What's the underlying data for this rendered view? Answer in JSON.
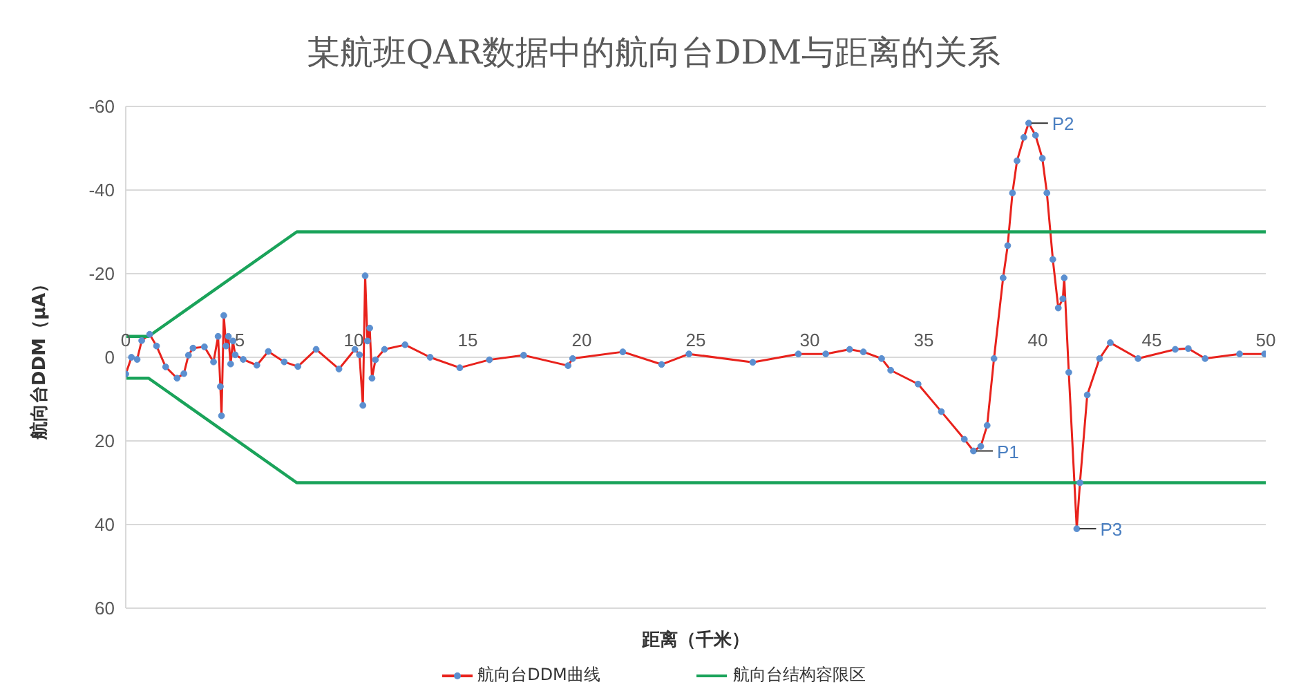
{
  "chart_data": {
    "type": "line",
    "title": "某航班QAR数据中的航向台DDM与距离的关系",
    "xlabel": "距离（千米）",
    "ylabel": "航向台DDM（μA）",
    "xlim": [
      0,
      50
    ],
    "xticks": [
      0,
      5,
      10,
      15,
      20,
      25,
      30,
      35,
      40,
      45,
      50
    ],
    "ylim": [
      60,
      -60
    ],
    "yticks": [
      -60,
      -40,
      -20,
      0,
      20,
      40,
      60
    ],
    "grid": "y",
    "legend": "bottom",
    "series": [
      {
        "name": "航向台DDM曲线",
        "color": "#e8221c",
        "marker": "circle",
        "x": [
          0,
          0.25,
          0.5,
          0.7,
          1.05,
          1.35,
          1.75,
          2.25,
          2.55,
          2.75,
          2.95,
          3.45,
          3.85,
          4.05,
          4.15,
          4.2,
          4.3,
          4.4,
          4.5,
          4.6,
          4.7,
          4.8,
          5.15,
          5.75,
          6.25,
          6.95,
          7.55,
          8.35,
          9.35,
          10.05,
          10.25,
          10.4,
          10.5,
          10.6,
          10.7,
          10.8,
          10.95,
          11.35,
          12.25,
          13.35,
          14.65,
          15.95,
          17.45,
          19.4,
          19.6,
          21.8,
          23.5,
          24.7,
          27.5,
          29.5,
          30.7,
          31.75,
          32.35,
          33.15,
          33.55,
          34.75,
          35.77,
          36.78,
          37.18,
          37.5,
          37.78,
          38.08,
          38.48,
          38.68,
          38.89,
          39.09,
          39.39,
          39.6,
          39.9,
          40.2,
          40.4,
          40.66,
          40.9,
          41.1,
          41.16,
          41.36,
          41.71,
          41.85,
          42.17,
          42.71,
          43.18,
          44.4,
          46.03,
          46.6,
          47.34,
          48.85,
          49.95
        ],
        "values": [
          4,
          0,
          0.5,
          -4,
          -5.5,
          -2.7,
          2.3,
          5,
          3.9,
          -0.5,
          -2.2,
          -2.5,
          1.1,
          -5,
          7,
          14,
          -10,
          -2.7,
          -5,
          1.6,
          -3.9,
          -0.6,
          0.5,
          1.9,
          -1.4,
          1.1,
          2.2,
          -1.9,
          2.8,
          -1.9,
          -0.6,
          11.5,
          -19.5,
          -3.9,
          -7,
          5,
          0.6,
          -1.9,
          -3,
          0,
          2.5,
          0.6,
          -0.5,
          2,
          0.3,
          -1.3,
          1.7,
          -0.8,
          1.2,
          -0.8,
          -0.8,
          -1.9,
          -1.3,
          0.3,
          3.1,
          6.4,
          13,
          19.6,
          22.4,
          21.3,
          16.3,
          0.3,
          -19,
          -26.7,
          -39.3,
          -47,
          -52.6,
          -56,
          -53.1,
          -47.6,
          -39.3,
          -23.4,
          -11.8,
          -14,
          -19,
          3.6,
          41,
          30,
          9,
          0.3,
          -3.5,
          0.3,
          -1.9,
          -2.1,
          0.3,
          -0.8,
          -0.8
        ]
      },
      {
        "name": "航向台结构容限区",
        "color": "#1aa35a",
        "marker": "none",
        "x": [
          0,
          1,
          7.5,
          50
        ],
        "values": [
          -5,
          -5,
          -30,
          -30
        ]
      },
      {
        "color": "#1aa35a",
        "marker": "none",
        "x": [
          0,
          1,
          7.5,
          50
        ],
        "values": [
          5,
          5,
          30,
          30
        ]
      }
    ],
    "annotations": [
      {
        "text": "P1",
        "x": 37.18,
        "y": 22.4
      },
      {
        "text": "P2",
        "x": 39.6,
        "y": -56
      },
      {
        "text": "P3",
        "x": 41.71,
        "y": 41
      }
    ]
  }
}
